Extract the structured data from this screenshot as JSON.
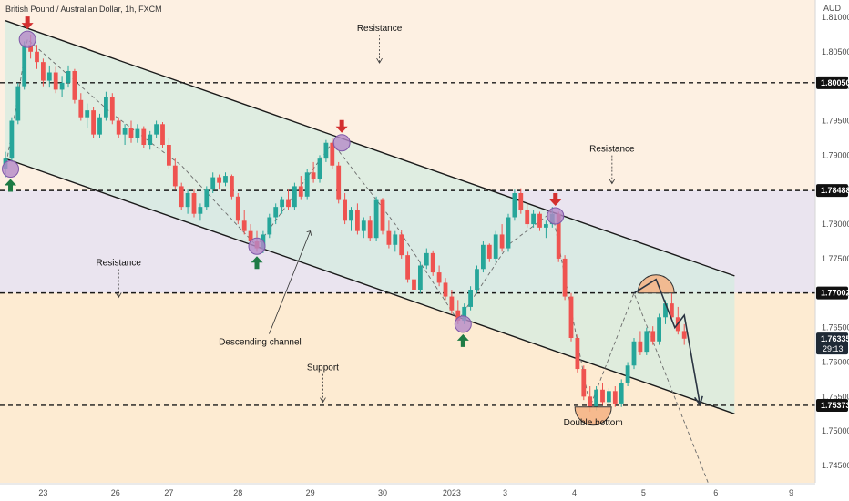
{
  "header": {
    "title": "British Pound / Australian Dollar, 1h, FXCM",
    "currency": "AUD"
  },
  "colors": {
    "up": "#26a69a",
    "down": "#ef5350",
    "channel_fill": "#d4ece0",
    "band_pink": "#eae4ef",
    "band_peach": "#fdebd2",
    "zone_highlight": "#f4b183",
    "marker_circle": "#b48ac8",
    "up_arrow": "#1e7b45",
    "down_arrow": "#d32f2f",
    "line": "#1a1a1a"
  },
  "chart_data": {
    "type": "candlestick",
    "title": "British Pound / Australian Dollar, 1h, FXCM",
    "ylim": [
      1.7425,
      1.8125
    ],
    "y_ticks": [
      "1.81000",
      "1.80500",
      "1.80000",
      "1.79500",
      "1.79000",
      "1.78500",
      "1.78000",
      "1.77500",
      "1.77000",
      "1.76500",
      "1.76000",
      "1.75500",
      "1.75000",
      "1.74500"
    ],
    "x_ticks": [
      "23",
      "26",
      "27",
      "28",
      "29",
      "30",
      "2023",
      "3",
      "4",
      "5",
      "6",
      "9"
    ],
    "price_lines": [
      {
        "label": "1.80050",
        "value": 1.8005
      },
      {
        "label": "1.78488",
        "value": 1.78488
      },
      {
        "label": "1.77002",
        "value": 1.77002
      },
      {
        "label": "1.75373",
        "value": 1.75373
      }
    ],
    "current_price": {
      "label": "1.76335",
      "countdown": "29:13",
      "value": 1.76335
    },
    "candles": [
      {
        "o": 1.788,
        "h": 1.7905,
        "l": 1.7868,
        "c": 1.7895
      },
      {
        "o": 1.7895,
        "h": 1.7955,
        "l": 1.789,
        "c": 1.795
      },
      {
        "o": 1.795,
        "h": 1.8005,
        "l": 1.7945,
        "c": 1.8
      },
      {
        "o": 1.8,
        "h": 1.8065,
        "l": 1.7995,
        "c": 1.806
      },
      {
        "o": 1.806,
        "h": 1.8075,
        "l": 1.804,
        "c": 1.805
      },
      {
        "o": 1.805,
        "h": 1.806,
        "l": 1.8025,
        "c": 1.8035
      },
      {
        "o": 1.8035,
        "h": 1.804,
        "l": 1.8,
        "c": 1.8008
      },
      {
        "o": 1.8008,
        "h": 1.803,
        "l": 1.7998,
        "c": 1.802
      },
      {
        "o": 1.802,
        "h": 1.8028,
        "l": 1.799,
        "c": 1.7995
      },
      {
        "o": 1.7995,
        "h": 1.8015,
        "l": 1.7985,
        "c": 1.8005
      },
      {
        "o": 1.8005,
        "h": 1.803,
        "l": 1.7998,
        "c": 1.8022
      },
      {
        "o": 1.8022,
        "h": 1.8025,
        "l": 1.7975,
        "c": 1.798
      },
      {
        "o": 1.798,
        "h": 1.799,
        "l": 1.795,
        "c": 1.7955
      },
      {
        "o": 1.7955,
        "h": 1.7975,
        "l": 1.794,
        "c": 1.7965
      },
      {
        "o": 1.7965,
        "h": 1.797,
        "l": 1.7925,
        "c": 1.793
      },
      {
        "o": 1.793,
        "h": 1.796,
        "l": 1.7925,
        "c": 1.7955
      },
      {
        "o": 1.7955,
        "h": 1.7992,
        "l": 1.795,
        "c": 1.7985
      },
      {
        "o": 1.7985,
        "h": 1.799,
        "l": 1.7945,
        "c": 1.795
      },
      {
        "o": 1.795,
        "h": 1.7955,
        "l": 1.7925,
        "c": 1.793
      },
      {
        "o": 1.793,
        "h": 1.7945,
        "l": 1.7915,
        "c": 1.794
      },
      {
        "o": 1.794,
        "h": 1.795,
        "l": 1.7918,
        "c": 1.7925
      },
      {
        "o": 1.7925,
        "h": 1.7945,
        "l": 1.7918,
        "c": 1.7938
      },
      {
        "o": 1.7938,
        "h": 1.7942,
        "l": 1.791,
        "c": 1.7915
      },
      {
        "o": 1.7915,
        "h": 1.7935,
        "l": 1.7908,
        "c": 1.793
      },
      {
        "o": 1.793,
        "h": 1.795,
        "l": 1.7925,
        "c": 1.7945
      },
      {
        "o": 1.7945,
        "h": 1.7948,
        "l": 1.791,
        "c": 1.7915
      },
      {
        "o": 1.7915,
        "h": 1.7925,
        "l": 1.788,
        "c": 1.7885
      },
      {
        "o": 1.7885,
        "h": 1.7895,
        "l": 1.785,
        "c": 1.7855
      },
      {
        "o": 1.7855,
        "h": 1.786,
        "l": 1.782,
        "c": 1.7825
      },
      {
        "o": 1.7825,
        "h": 1.785,
        "l": 1.7815,
        "c": 1.7845
      },
      {
        "o": 1.7845,
        "h": 1.785,
        "l": 1.781,
        "c": 1.7815
      },
      {
        "o": 1.7815,
        "h": 1.783,
        "l": 1.7805,
        "c": 1.7825
      },
      {
        "o": 1.7825,
        "h": 1.7855,
        "l": 1.782,
        "c": 1.785
      },
      {
        "o": 1.785,
        "h": 1.7875,
        "l": 1.7845,
        "c": 1.7868
      },
      {
        "o": 1.7868,
        "h": 1.7872,
        "l": 1.785,
        "c": 1.786
      },
      {
        "o": 1.786,
        "h": 1.7875,
        "l": 1.7855,
        "c": 1.787
      },
      {
        "o": 1.787,
        "h": 1.7872,
        "l": 1.7835,
        "c": 1.784
      },
      {
        "o": 1.784,
        "h": 1.7845,
        "l": 1.78,
        "c": 1.7805
      },
      {
        "o": 1.7805,
        "h": 1.782,
        "l": 1.7785,
        "c": 1.779
      },
      {
        "o": 1.779,
        "h": 1.78,
        "l": 1.777,
        "c": 1.7775
      },
      {
        "o": 1.7775,
        "h": 1.779,
        "l": 1.776,
        "c": 1.7765
      },
      {
        "o": 1.7765,
        "h": 1.779,
        "l": 1.7758,
        "c": 1.7785
      },
      {
        "o": 1.7785,
        "h": 1.7815,
        "l": 1.778,
        "c": 1.781
      },
      {
        "o": 1.781,
        "h": 1.783,
        "l": 1.78,
        "c": 1.7825
      },
      {
        "o": 1.7825,
        "h": 1.784,
        "l": 1.7815,
        "c": 1.7835
      },
      {
        "o": 1.7835,
        "h": 1.785,
        "l": 1.782,
        "c": 1.7825
      },
      {
        "o": 1.7825,
        "h": 1.786,
        "l": 1.782,
        "c": 1.7855
      },
      {
        "o": 1.7855,
        "h": 1.787,
        "l": 1.7835,
        "c": 1.784
      },
      {
        "o": 1.784,
        "h": 1.788,
        "l": 1.7835,
        "c": 1.7875
      },
      {
        "o": 1.7875,
        "h": 1.789,
        "l": 1.786,
        "c": 1.7865
      },
      {
        "o": 1.7865,
        "h": 1.79,
        "l": 1.786,
        "c": 1.7895
      },
      {
        "o": 1.7895,
        "h": 1.7922,
        "l": 1.789,
        "c": 1.7918
      },
      {
        "o": 1.7918,
        "h": 1.7925,
        "l": 1.788,
        "c": 1.7885
      },
      {
        "o": 1.7885,
        "h": 1.789,
        "l": 1.783,
        "c": 1.7835
      },
      {
        "o": 1.7835,
        "h": 1.7845,
        "l": 1.78,
        "c": 1.7805
      },
      {
        "o": 1.7805,
        "h": 1.7825,
        "l": 1.779,
        "c": 1.782
      },
      {
        "o": 1.782,
        "h": 1.783,
        "l": 1.7785,
        "c": 1.779
      },
      {
        "o": 1.779,
        "h": 1.781,
        "l": 1.778,
        "c": 1.7805
      },
      {
        "o": 1.7805,
        "h": 1.7812,
        "l": 1.7775,
        "c": 1.778
      },
      {
        "o": 1.778,
        "h": 1.784,
        "l": 1.7775,
        "c": 1.7835
      },
      {
        "o": 1.7835,
        "h": 1.7838,
        "l": 1.7785,
        "c": 1.779
      },
      {
        "o": 1.779,
        "h": 1.7805,
        "l": 1.7765,
        "c": 1.777
      },
      {
        "o": 1.777,
        "h": 1.779,
        "l": 1.776,
        "c": 1.7785
      },
      {
        "o": 1.7785,
        "h": 1.7792,
        "l": 1.775,
        "c": 1.7755
      },
      {
        "o": 1.7755,
        "h": 1.776,
        "l": 1.7715,
        "c": 1.772
      },
      {
        "o": 1.772,
        "h": 1.774,
        "l": 1.77,
        "c": 1.7705
      },
      {
        "o": 1.7705,
        "h": 1.7745,
        "l": 1.77,
        "c": 1.774
      },
      {
        "o": 1.774,
        "h": 1.7765,
        "l": 1.7735,
        "c": 1.7758
      },
      {
        "o": 1.7758,
        "h": 1.7762,
        "l": 1.7725,
        "c": 1.773
      },
      {
        "o": 1.773,
        "h": 1.774,
        "l": 1.771,
        "c": 1.7715
      },
      {
        "o": 1.7715,
        "h": 1.7722,
        "l": 1.769,
        "c": 1.7695
      },
      {
        "o": 1.7695,
        "h": 1.7705,
        "l": 1.767,
        "c": 1.7675
      },
      {
        "o": 1.7675,
        "h": 1.769,
        "l": 1.7655,
        "c": 1.766
      },
      {
        "o": 1.766,
        "h": 1.7685,
        "l": 1.7655,
        "c": 1.768
      },
      {
        "o": 1.768,
        "h": 1.771,
        "l": 1.7675,
        "c": 1.7705
      },
      {
        "o": 1.7705,
        "h": 1.774,
        "l": 1.77,
        "c": 1.7735
      },
      {
        "o": 1.7735,
        "h": 1.7775,
        "l": 1.773,
        "c": 1.777
      },
      {
        "o": 1.777,
        "h": 1.7772,
        "l": 1.7745,
        "c": 1.775
      },
      {
        "o": 1.775,
        "h": 1.779,
        "l": 1.7745,
        "c": 1.7785
      },
      {
        "o": 1.7785,
        "h": 1.78,
        "l": 1.776,
        "c": 1.7765
      },
      {
        "o": 1.7765,
        "h": 1.7815,
        "l": 1.776,
        "c": 1.781
      },
      {
        "o": 1.781,
        "h": 1.785,
        "l": 1.7805,
        "c": 1.7845
      },
      {
        "o": 1.7845,
        "h": 1.7852,
        "l": 1.7815,
        "c": 1.782
      },
      {
        "o": 1.782,
        "h": 1.783,
        "l": 1.7795,
        "c": 1.78
      },
      {
        "o": 1.78,
        "h": 1.782,
        "l": 1.7795,
        "c": 1.7815
      },
      {
        "o": 1.7815,
        "h": 1.7818,
        "l": 1.779,
        "c": 1.7795
      },
      {
        "o": 1.7795,
        "h": 1.7805,
        "l": 1.778,
        "c": 1.78
      },
      {
        "o": 1.78,
        "h": 1.7825,
        "l": 1.7795,
        "c": 1.7815
      },
      {
        "o": 1.7815,
        "h": 1.7818,
        "l": 1.7745,
        "c": 1.775
      },
      {
        "o": 1.775,
        "h": 1.7755,
        "l": 1.769,
        "c": 1.7695
      },
      {
        "o": 1.7695,
        "h": 1.77,
        "l": 1.763,
        "c": 1.7635
      },
      {
        "o": 1.7635,
        "h": 1.764,
        "l": 1.7585,
        "c": 1.759
      },
      {
        "o": 1.759,
        "h": 1.7595,
        "l": 1.7545,
        "c": 1.755
      },
      {
        "o": 1.755,
        "h": 1.7565,
        "l": 1.7528,
        "c": 1.7535
      },
      {
        "o": 1.7535,
        "h": 1.7565,
        "l": 1.753,
        "c": 1.756
      },
      {
        "o": 1.756,
        "h": 1.757,
        "l": 1.7538,
        "c": 1.7542
      },
      {
        "o": 1.7542,
        "h": 1.7562,
        "l": 1.7528,
        "c": 1.7558
      },
      {
        "o": 1.7558,
        "h": 1.7565,
        "l": 1.7535,
        "c": 1.754
      },
      {
        "o": 1.754,
        "h": 1.7575,
        "l": 1.7535,
        "c": 1.757
      },
      {
        "o": 1.757,
        "h": 1.76,
        "l": 1.7565,
        "c": 1.7595
      },
      {
        "o": 1.7595,
        "h": 1.7635,
        "l": 1.759,
        "c": 1.763
      },
      {
        "o": 1.763,
        "h": 1.7645,
        "l": 1.761,
        "c": 1.7615
      },
      {
        "o": 1.7615,
        "h": 1.765,
        "l": 1.761,
        "c": 1.7645
      },
      {
        "o": 1.7645,
        "h": 1.7652,
        "l": 1.7625,
        "c": 1.763
      },
      {
        "o": 1.763,
        "h": 1.767,
        "l": 1.7625,
        "c": 1.7665
      },
      {
        "o": 1.7665,
        "h": 1.769,
        "l": 1.7655,
        "c": 1.7685
      },
      {
        "o": 1.7685,
        "h": 1.77,
        "l": 1.766,
        "c": 1.7665
      },
      {
        "o": 1.7665,
        "h": 1.768,
        "l": 1.764,
        "c": 1.7645
      },
      {
        "o": 1.7645,
        "h": 1.7655,
        "l": 1.7625,
        "c": 1.7634
      }
    ],
    "channel": {
      "upper": [
        {
          "x": 0,
          "y": 1.8095
        },
        {
          "x": 116,
          "y": 1.7725
        }
      ],
      "lower": [
        {
          "x": 0,
          "y": 1.7895
        },
        {
          "x": 116,
          "y": 1.7525
        }
      ]
    },
    "projection_path": [
      {
        "x": 100,
        "y": 1.77
      },
      {
        "x": 103.5,
        "y": 1.772
      },
      {
        "x": 106.5,
        "y": 1.765
      },
      {
        "x": 108,
        "y": 1.7668
      },
      {
        "x": 110.5,
        "y": 1.7538
      }
    ],
    "dashed_paths": [
      [
        {
          "x": 0,
          "y": 1.788
        },
        {
          "x": 3.5,
          "y": 1.8068
        },
        {
          "x": 17,
          "y": 1.796
        },
        {
          "x": 28,
          "y": 1.7885
        },
        {
          "x": 40,
          "y": 1.7768
        },
        {
          "x": 52,
          "y": 1.7918
        },
        {
          "x": 62,
          "y": 1.78
        },
        {
          "x": 72,
          "y": 1.766
        },
        {
          "x": 80,
          "y": 1.777
        },
        {
          "x": 87,
          "y": 1.7818
        },
        {
          "x": 93,
          "y": 1.7535
        },
        {
          "x": 100,
          "y": 1.77
        },
        {
          "x": 112,
          "y": 1.742
        }
      ]
    ],
    "pivots": [
      {
        "x": 3.5,
        "y": 1.8068,
        "arrow": "down"
      },
      {
        "x": 0.8,
        "y": 1.788,
        "arrow": "up"
      },
      {
        "x": 40,
        "y": 1.7768,
        "arrow": "up"
      },
      {
        "x": 53.5,
        "y": 1.7918,
        "arrow": "down"
      },
      {
        "x": 72.8,
        "y": 1.7655,
        "arrow": "up"
      },
      {
        "x": 87.5,
        "y": 1.7812,
        "arrow": "down"
      }
    ],
    "zones": [
      {
        "type": "top",
        "x": 103.5,
        "y": 1.77
      },
      {
        "type": "bottom",
        "x": 93.5,
        "y": 1.7535
      }
    ],
    "annotations": [
      {
        "text": "Resistance",
        "x": 59.5,
        "y": 1.808,
        "line": "down"
      },
      {
        "text": "Resistance",
        "x": 96.5,
        "y": 1.7905,
        "line": "down"
      },
      {
        "text": "Resistance",
        "x": 18,
        "y": 1.774,
        "line": "down"
      },
      {
        "text": "Support",
        "x": 50.5,
        "y": 1.7588,
        "line": "down"
      },
      {
        "text": "Descending channel",
        "x": 40.5,
        "y": 1.7625,
        "line": "up"
      },
      {
        "text": "Double bottom",
        "x": 93.5,
        "y": 1.7508,
        "line": "none"
      }
    ]
  }
}
